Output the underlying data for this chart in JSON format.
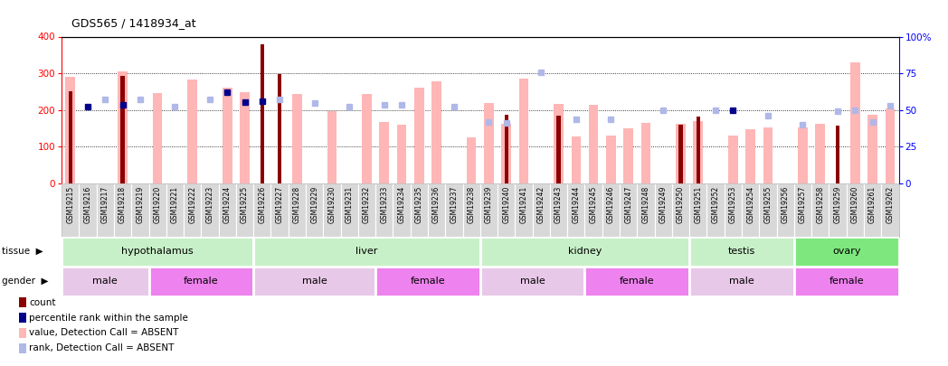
{
  "title": "GDS565 / 1418934_at",
  "samples": [
    "GSM19215",
    "GSM19216",
    "GSM19217",
    "GSM19218",
    "GSM19219",
    "GSM19220",
    "GSM19221",
    "GSM19222",
    "GSM19223",
    "GSM19224",
    "GSM19225",
    "GSM19226",
    "GSM19227",
    "GSM19228",
    "GSM19229",
    "GSM19230",
    "GSM19231",
    "GSM19232",
    "GSM19233",
    "GSM19234",
    "GSM19235",
    "GSM19236",
    "GSM19237",
    "GSM19238",
    "GSM19239",
    "GSM19240",
    "GSM19241",
    "GSM19242",
    "GSM19243",
    "GSM19244",
    "GSM19245",
    "GSM19246",
    "GSM19247",
    "GSM19248",
    "GSM19249",
    "GSM19250",
    "GSM19251",
    "GSM19252",
    "GSM19253",
    "GSM19254",
    "GSM19255",
    "GSM19256",
    "GSM19257",
    "GSM19258",
    "GSM19259",
    "GSM19260",
    "GSM19261",
    "GSM19262"
  ],
  "absent_val": [
    290,
    null,
    null,
    305,
    null,
    246,
    null,
    283,
    null,
    260,
    248,
    null,
    null,
    244,
    null,
    196,
    null,
    244,
    168,
    161,
    261,
    277,
    null,
    126,
    220,
    163,
    285,
    null,
    216,
    129,
    213,
    130,
    150,
    165,
    null,
    162,
    170,
    null,
    130,
    147,
    152,
    null,
    152,
    163,
    null,
    330,
    188,
    203
  ],
  "count_val": [
    250,
    null,
    null,
    293,
    null,
    null,
    null,
    null,
    null,
    null,
    null,
    380,
    297,
    null,
    null,
    null,
    null,
    null,
    null,
    null,
    null,
    null,
    null,
    null,
    null,
    187,
    null,
    null,
    184,
    null,
    null,
    null,
    null,
    null,
    null,
    161,
    183,
    null,
    null,
    null,
    null,
    null,
    null,
    null,
    158,
    null,
    null,
    null
  ],
  "pct_rank_left": [
    null,
    208,
    null,
    214,
    null,
    null,
    null,
    null,
    null,
    248,
    222,
    225,
    null,
    null,
    null,
    null,
    null,
    null,
    null,
    null,
    null,
    null,
    null,
    null,
    null,
    null,
    null,
    null,
    null,
    null,
    null,
    null,
    null,
    null,
    null,
    null,
    null,
    null,
    200,
    null,
    null,
    null,
    null,
    null,
    null,
    null,
    null,
    null
  ],
  "absent_rank_left": [
    null,
    null,
    228,
    null,
    230,
    null,
    210,
    null,
    230,
    null,
    null,
    null,
    228,
    null,
    220,
    null,
    208,
    null,
    214,
    213,
    null,
    null,
    210,
    null,
    168,
    165,
    null,
    303,
    null,
    175,
    null,
    175,
    null,
    null,
    200,
    null,
    null,
    200,
    null,
    null,
    184,
    null,
    160,
    null,
    196,
    200,
    168,
    212
  ],
  "tissue_groups": [
    {
      "label": "hypothalamus",
      "start": 0,
      "end": 11,
      "color": "#c8f0c8"
    },
    {
      "label": "liver",
      "start": 11,
      "end": 24,
      "color": "#c8f0c8"
    },
    {
      "label": "kidney",
      "start": 24,
      "end": 36,
      "color": "#c8f0c8"
    },
    {
      "label": "testis",
      "start": 36,
      "end": 42,
      "color": "#c8f0c8"
    },
    {
      "label": "ovary",
      "start": 42,
      "end": 48,
      "color": "#7ee87e"
    }
  ],
  "gender_groups": [
    {
      "label": "male",
      "start": 0,
      "end": 5,
      "color": "#e8c8e8"
    },
    {
      "label": "female",
      "start": 5,
      "end": 11,
      "color": "#ee82ee"
    },
    {
      "label": "male",
      "start": 11,
      "end": 18,
      "color": "#e8c8e8"
    },
    {
      "label": "female",
      "start": 18,
      "end": 24,
      "color": "#ee82ee"
    },
    {
      "label": "male",
      "start": 24,
      "end": 30,
      "color": "#e8c8e8"
    },
    {
      "label": "female",
      "start": 30,
      "end": 36,
      "color": "#ee82ee"
    },
    {
      "label": "male",
      "start": 36,
      "end": 42,
      "color": "#e8c8e8"
    },
    {
      "label": "female",
      "start": 42,
      "end": 48,
      "color": "#ee82ee"
    }
  ],
  "absent_value_color": "#ffb6b6",
  "absent_rank_color": "#b0b8e8",
  "count_color": "#8b0000",
  "percentile_color": "#00008b",
  "yticks_left": [
    0,
    100,
    200,
    300,
    400
  ],
  "yticks_right": [
    0,
    25,
    50,
    75,
    100
  ],
  "legend_items": [
    {
      "label": "count",
      "color": "#8b0000"
    },
    {
      "label": "percentile rank within the sample",
      "color": "#00008b"
    },
    {
      "label": "value, Detection Call = ABSENT",
      "color": "#ffb6b6"
    },
    {
      "label": "rank, Detection Call = ABSENT",
      "color": "#b0b8e8"
    }
  ],
  "xlabel_bg": "#d8d8d8",
  "chart_bg": "#ffffff"
}
